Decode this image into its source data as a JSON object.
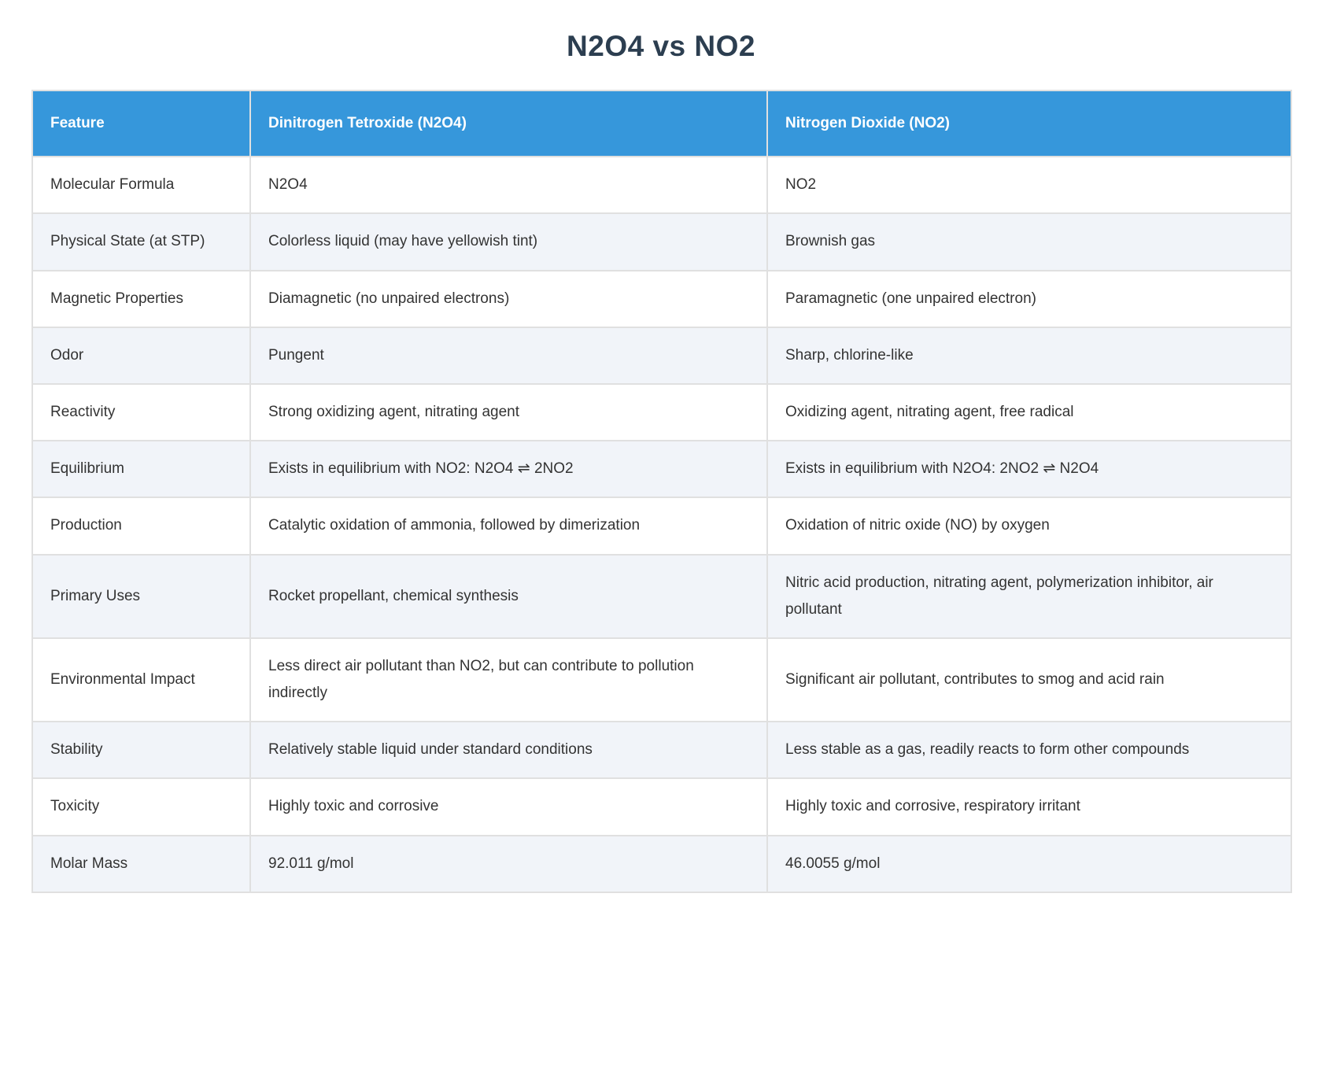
{
  "title": "N2O4 vs NO2",
  "colors": {
    "header_background": "#3697db",
    "header_text": "#ffffff",
    "title_text": "#2c3e50",
    "row_alt_background": "#f1f4f9",
    "row_background": "#ffffff",
    "border": "#e0e0e0",
    "body_text": "#333333"
  },
  "table": {
    "headers": [
      "Feature",
      "Dinitrogen Tetroxide (N2O4)",
      "Nitrogen Dioxide (NO2)"
    ],
    "rows": [
      [
        "Molecular Formula",
        "N2O4",
        "NO2"
      ],
      [
        "Physical State (at STP)",
        "Colorless liquid (may have yellowish tint)",
        "Brownish gas"
      ],
      [
        "Magnetic Properties",
        "Diamagnetic (no unpaired electrons)",
        "Paramagnetic (one unpaired electron)"
      ],
      [
        "Odor",
        "Pungent",
        "Sharp, chlorine-like"
      ],
      [
        "Reactivity",
        "Strong oxidizing agent, nitrating agent",
        "Oxidizing agent, nitrating agent, free radical"
      ],
      [
        "Equilibrium",
        "Exists in equilibrium with NO2: N2O4 ⇌ 2NO2",
        "Exists in equilibrium with N2O4: 2NO2 ⇌ N2O4"
      ],
      [
        "Production",
        "Catalytic oxidation of ammonia, followed by dimerization",
        "Oxidation of nitric oxide (NO) by oxygen"
      ],
      [
        "Primary Uses",
        "Rocket propellant, chemical synthesis",
        "Nitric acid production, nitrating agent, polymerization inhibitor, air pollutant"
      ],
      [
        "Environmental Impact",
        "Less direct air pollutant than NO2, but can contribute to pollution indirectly",
        "Significant air pollutant, contributes to smog and acid rain"
      ],
      [
        "Stability",
        "Relatively stable liquid under standard conditions",
        "Less stable as a gas, readily reacts to form other compounds"
      ],
      [
        "Toxicity",
        "Highly toxic and corrosive",
        "Highly toxic and corrosive, respiratory irritant"
      ],
      [
        "Molar Mass",
        "92.011 g/mol",
        "46.0055 g/mol"
      ]
    ]
  }
}
